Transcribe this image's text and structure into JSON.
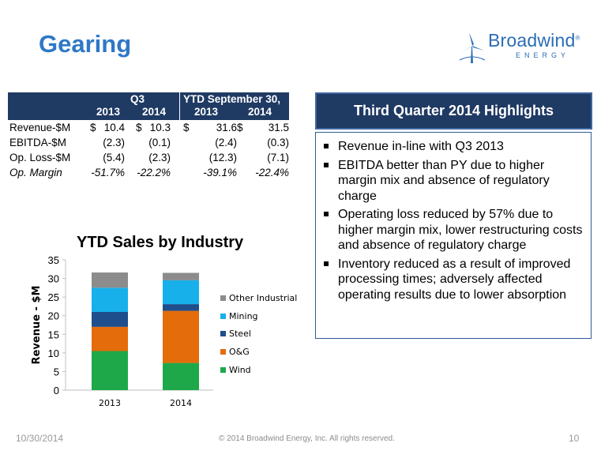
{
  "slide": {
    "title": "Gearing",
    "logo": {
      "name": "Broadwind",
      "registered": "®",
      "tagline": "ENERGY"
    }
  },
  "table": {
    "group_headers": [
      "Q3",
      "YTD September 30,"
    ],
    "years": [
      "2013",
      "2014",
      "2013",
      "2014"
    ],
    "rows": [
      {
        "label": "Revenue-$M",
        "cells": [
          [
            "$",
            "10.4"
          ],
          [
            "$",
            "10.3"
          ],
          [
            "$",
            "31.6"
          ],
          [
            "$",
            "31.5"
          ]
        ]
      },
      {
        "label": "EBITDA-$M",
        "cells": [
          [
            "",
            "(2.3)"
          ],
          [
            "",
            "(0.1)"
          ],
          [
            "",
            "(2.4)"
          ],
          [
            "",
            "(0.3)"
          ]
        ]
      },
      {
        "label": "Op. Loss-$M",
        "cells": [
          [
            "",
            "(5.4)"
          ],
          [
            "",
            "(2.3)"
          ],
          [
            "",
            "(12.3)"
          ],
          [
            "",
            "(7.1)"
          ]
        ]
      },
      {
        "label": "Op. Margin",
        "cells": [
          [
            "",
            "-51.7%"
          ],
          [
            "",
            "-22.2%"
          ],
          [
            "",
            "-39.1%"
          ],
          [
            "",
            "-22.4%"
          ]
        ]
      }
    ]
  },
  "highlights": {
    "title": "Third Quarter 2014 Highlights",
    "items": [
      "Revenue in-line with Q3 2013",
      "EBITDA better than PY due to higher margin mix and absence of regulatory charge",
      "Operating loss reduced by 57% due to higher margin mix, lower restructuring costs and absence of regulatory charge",
      "Inventory reduced as a result of improved processing times; adversely affected operating results due to lower absorption"
    ]
  },
  "chart_data": {
    "type": "bar",
    "stacked": true,
    "title": "YTD Sales by Industry",
    "xlabel": "",
    "ylabel": "Revenue - $M",
    "categories": [
      "2013",
      "2014"
    ],
    "ylim": [
      0,
      35
    ],
    "yticks": [
      0,
      5,
      10,
      15,
      20,
      25,
      30,
      35
    ],
    "legend_position": "right",
    "series": [
      {
        "name": "Wind",
        "color": "#1fa84a",
        "values": [
          10.5,
          7.3
        ]
      },
      {
        "name": "O&G",
        "color": "#e46c0a",
        "values": [
          6.5,
          14.0
        ]
      },
      {
        "name": "Steel",
        "color": "#1f4e8c",
        "values": [
          4.0,
          1.8
        ]
      },
      {
        "name": "Mining",
        "color": "#17b0ea",
        "values": [
          6.5,
          6.4
        ]
      },
      {
        "name": "Other Industrial",
        "color": "#8c8c8c",
        "values": [
          4.1,
          2.0
        ]
      }
    ]
  },
  "footer": {
    "date": "10/30/2014",
    "copyright": "© 2014 Broadwind Energy, Inc. All rights reserved.",
    "page": "10"
  }
}
